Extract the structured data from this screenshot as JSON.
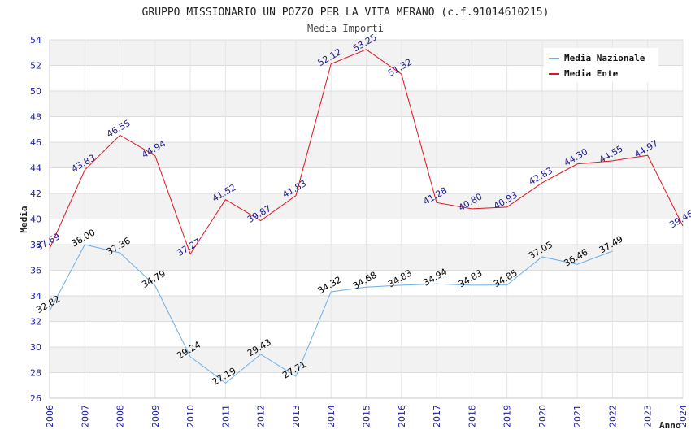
{
  "chart_data": {
    "type": "line",
    "title": "GRUPPO MISSIONARIO UN POZZO PER LA VITA MERANO (c.f.91014610215)",
    "subtitle": "Media Importi",
    "xlabel": "Anno",
    "ylabel": "Media",
    "ylim": [
      26,
      54
    ],
    "yticks": [
      26,
      28,
      30,
      32,
      34,
      36,
      38,
      40,
      42,
      44,
      46,
      48,
      50,
      52,
      54
    ],
    "categories": [
      "2006",
      "2007",
      "2008",
      "2009",
      "2010",
      "2011",
      "2012",
      "2013",
      "2014",
      "2015",
      "2016",
      "2017",
      "2018",
      "2019",
      "2020",
      "2021",
      "2022",
      "2023",
      "2024"
    ],
    "legend_position": "top-right",
    "series": [
      {
        "name": "Media Nazionale",
        "color": "#6aaee8",
        "values": [
          32.82,
          38.0,
          37.36,
          34.79,
          29.24,
          27.19,
          29.43,
          27.71,
          34.32,
          34.68,
          34.83,
          34.94,
          34.83,
          34.85,
          37.05,
          36.46,
          37.49,
          null,
          null
        ],
        "labels": [
          "32.82",
          "38.00",
          "37.36",
          "34.79",
          "29.24",
          "27.19",
          "29.43",
          "27.71",
          "34.32",
          "34.68",
          "34.83",
          "34.94",
          "34.83",
          "34.85",
          "37.05",
          "36.46",
          "37.49",
          null,
          null
        ]
      },
      {
        "name": "Media Ente",
        "color": "#e0141e",
        "values": [
          37.69,
          43.83,
          46.55,
          44.94,
          37.27,
          41.52,
          39.87,
          41.83,
          52.12,
          53.25,
          51.32,
          41.28,
          40.8,
          40.93,
          42.83,
          44.3,
          44.55,
          44.97,
          39.46
        ],
        "labels": [
          "37.69",
          "43.83",
          "46.55",
          "44.94",
          "37.27",
          "41.52",
          "39.87",
          "41.83",
          "52.12",
          "53.25",
          "51.32",
          "41.28",
          "40.80",
          "40.93",
          "42.83",
          "44.30",
          "44.55",
          "44.97",
          "39.46"
        ]
      }
    ]
  }
}
